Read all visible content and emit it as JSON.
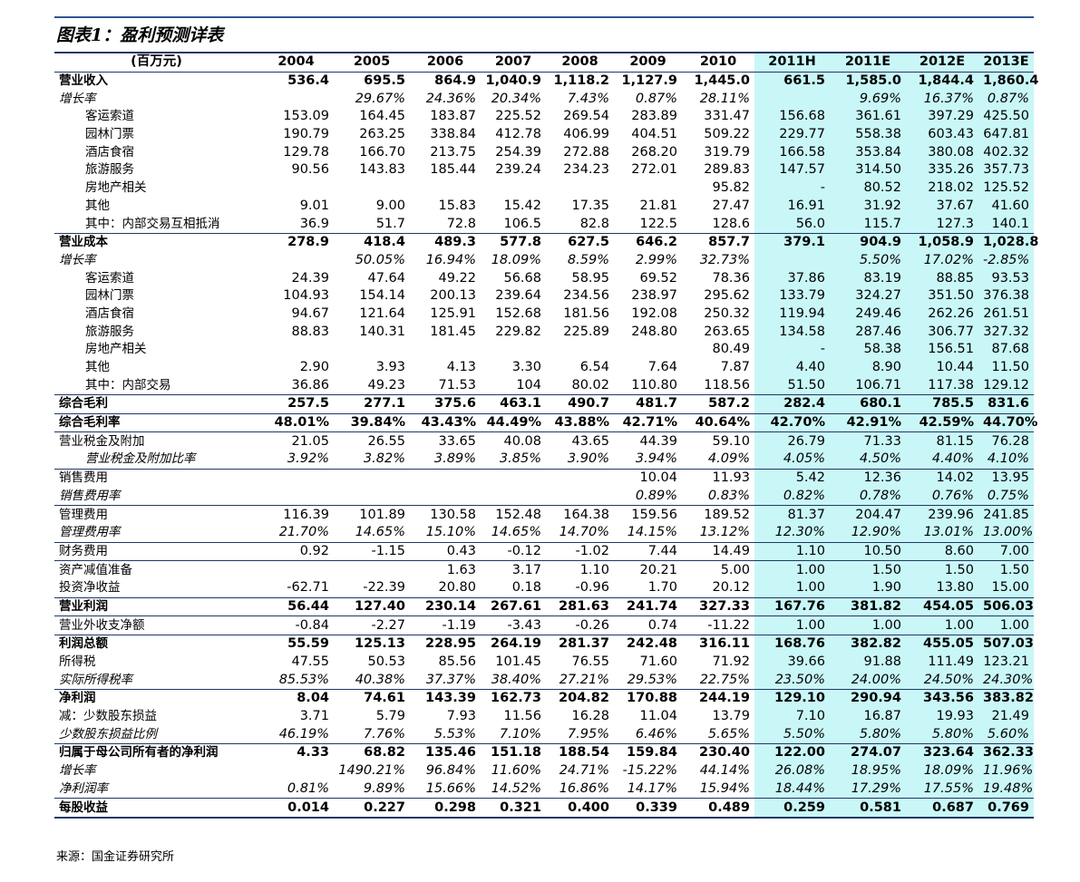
{
  "title": "图表1：盈利预测详表",
  "source": "来源：国金证券研究所",
  "table": {
    "header": [
      "(百万元)",
      "2004",
      "2005",
      "2006",
      "2007",
      "2008",
      "2009",
      "2010",
      "2011H",
      "2011E",
      "2012E",
      "2013E"
    ],
    "rows": [
      {
        "label": "营业收入",
        "values": [
          "536.4",
          "695.5",
          "864.9",
          "1,040.9",
          "1,118.2",
          "1,127.9",
          "1,445.0",
          "661.5",
          "1,585.0",
          "1,844.4",
          "1,860.4"
        ]
      },
      {
        "label": "增长率",
        "values": [
          null,
          "29.67%",
          "24.36%",
          "20.34%",
          "7.43%",
          "0.87%",
          "28.11%",
          null,
          "9.69%",
          "16.37%",
          "0.87%"
        ]
      },
      {
        "label": "客运索道",
        "values": [
          "153.09",
          "164.45",
          "183.87",
          "225.52",
          "269.54",
          "283.89",
          "331.47",
          "156.68",
          "361.61",
          "397.29",
          "425.50"
        ]
      },
      {
        "label": "园林门票",
        "values": [
          "190.79",
          "263.25",
          "338.84",
          "412.78",
          "406.99",
          "404.51",
          "509.22",
          "229.77",
          "558.38",
          "603.43",
          "647.81"
        ]
      },
      {
        "label": "酒店食宿",
        "values": [
          "129.78",
          "166.70",
          "213.75",
          "254.39",
          "272.88",
          "268.20",
          "319.79",
          "166.58",
          "353.84",
          "380.08",
          "402.32"
        ]
      },
      {
        "label": "旅游服务",
        "values": [
          "90.56",
          "143.83",
          "185.44",
          "239.24",
          "234.23",
          "272.01",
          "289.83",
          "147.57",
          "314.50",
          "335.26",
          "357.73"
        ]
      },
      {
        "label": "房地产相关",
        "values": [
          null,
          null,
          null,
          null,
          null,
          null,
          "95.82",
          "-",
          "80.52",
          "218.02",
          "125.52"
        ]
      },
      {
        "label": "其他",
        "values": [
          "9.01",
          "9.00",
          "15.83",
          "15.42",
          "17.35",
          "21.81",
          "27.47",
          "16.91",
          "31.92",
          "37.67",
          "41.60"
        ]
      },
      {
        "label": "其中：内部交易互相抵消",
        "values": [
          "36.9",
          "51.7",
          "72.8",
          "106.5",
          "82.8",
          "122.5",
          "128.6",
          "56.0",
          "115.7",
          "127.3",
          "140.1"
        ]
      },
      {
        "label": "营业成本",
        "values": [
          "278.9",
          "418.4",
          "489.3",
          "577.8",
          "627.5",
          "646.2",
          "857.7",
          "379.1",
          "904.9",
          "1,058.9",
          "1,028.8"
        ]
      },
      {
        "label": "增长率",
        "values": [
          null,
          "50.05%",
          "16.94%",
          "18.09%",
          "8.59%",
          "2.99%",
          "32.73%",
          null,
          "5.50%",
          "17.02%",
          "-2.85%"
        ]
      },
      {
        "label": "客运索道",
        "values": [
          "24.39",
          "47.64",
          "49.22",
          "56.68",
          "58.95",
          "69.52",
          "78.36",
          "37.86",
          "83.19",
          "88.85",
          "93.53"
        ]
      },
      {
        "label": "园林门票",
        "values": [
          "104.93",
          "154.14",
          "200.13",
          "239.64",
          "234.56",
          "238.97",
          "295.62",
          "133.79",
          "324.27",
          "351.50",
          "376.38"
        ]
      },
      {
        "label": "酒店食宿",
        "values": [
          "94.67",
          "121.64",
          "125.91",
          "152.68",
          "181.56",
          "192.08",
          "250.32",
          "119.94",
          "249.46",
          "262.26",
          "261.51"
        ]
      },
      {
        "label": "旅游服务",
        "values": [
          "88.83",
          "140.31",
          "181.45",
          "229.82",
          "225.89",
          "248.80",
          "263.65",
          "134.58",
          "287.46",
          "306.77",
          "327.32"
        ]
      },
      {
        "label": "房地产相关",
        "values": [
          null,
          null,
          null,
          null,
          null,
          null,
          "80.49",
          "-",
          "58.38",
          "156.51",
          "87.68"
        ]
      },
      {
        "label": "其他",
        "values": [
          "2.90",
          "3.93",
          "4.13",
          "3.30",
          "6.54",
          "7.64",
          "7.87",
          "4.40",
          "8.90",
          "10.44",
          "11.50"
        ]
      },
      {
        "label": "其中：内部交易",
        "values": [
          "36.86",
          "49.23",
          "71.53",
          "104",
          "80.02",
          "110.80",
          "118.56",
          "51.50",
          "106.71",
          "117.38",
          "129.12"
        ]
      },
      {
        "label": "综合毛利",
        "values": [
          "257.5",
          "277.1",
          "375.6",
          "463.1",
          "490.7",
          "481.7",
          "587.2",
          "282.4",
          "680.1",
          "785.5",
          "831.6"
        ]
      },
      {
        "label": "综合毛利率",
        "values": [
          "48.01%",
          "39.84%",
          "43.43%",
          "44.49%",
          "43.88%",
          "42.71%",
          "40.64%",
          "42.70%",
          "42.91%",
          "42.59%",
          "44.70%"
        ]
      },
      {
        "label": "营业税金及附加",
        "values": [
          "21.05",
          "26.55",
          "33.65",
          "40.08",
          "43.65",
          "44.39",
          "59.10",
          "26.79",
          "71.33",
          "81.15",
          "76.28"
        ]
      },
      {
        "label": "营业税金及附加比率",
        "values": [
          "3.92%",
          "3.82%",
          "3.89%",
          "3.85%",
          "3.90%",
          "3.94%",
          "4.09%",
          "4.05%",
          "4.50%",
          "4.40%",
          "4.10%"
        ]
      },
      {
        "label": "销售费用",
        "values": [
          null,
          null,
          null,
          null,
          null,
          "10.04",
          "11.93",
          "5.42",
          "12.36",
          "14.02",
          "13.95"
        ]
      },
      {
        "label": "销售费用率",
        "values": [
          null,
          null,
          null,
          null,
          null,
          "0.89%",
          "0.83%",
          "0.82%",
          "0.78%",
          "0.76%",
          "0.75%"
        ]
      },
      {
        "label": "管理费用",
        "values": [
          "116.39",
          "101.89",
          "130.58",
          "152.48",
          "164.38",
          "159.56",
          "189.52",
          "81.37",
          "204.47",
          "239.96",
          "241.85"
        ]
      },
      {
        "label": "管理费用率",
        "values": [
          "21.70%",
          "14.65%",
          "15.10%",
          "14.65%",
          "14.70%",
          "14.15%",
          "13.12%",
          "12.30%",
          "12.90%",
          "13.01%",
          "13.00%"
        ]
      },
      {
        "label": "财务费用",
        "values": [
          "0.92",
          "-1.15",
          "0.43",
          "-0.12",
          "-1.02",
          "7.44",
          "14.49",
          "1.10",
          "10.50",
          "8.60",
          "7.00"
        ]
      },
      {
        "label": "资产减值准备",
        "values": [
          null,
          null,
          "1.63",
          "3.17",
          "1.10",
          "20.21",
          "5.00",
          "1.00",
          "1.50",
          "1.50",
          "1.50"
        ]
      },
      {
        "label": "投资净收益",
        "values": [
          "-62.71",
          "-22.39",
          "20.80",
          "0.18",
          "-0.96",
          "1.70",
          "20.12",
          "1.00",
          "1.90",
          "13.80",
          "15.00"
        ]
      },
      {
        "label": "营业利润",
        "values": [
          "56.44",
          "127.40",
          "230.14",
          "267.61",
          "281.63",
          "241.74",
          "327.33",
          "167.76",
          "381.82",
          "454.05",
          "506.03"
        ]
      },
      {
        "label": "营业外收支净额",
        "values": [
          "-0.84",
          "-2.27",
          "-1.19",
          "-3.43",
          "-0.26",
          "0.74",
          "-11.22",
          "1.00",
          "1.00",
          "1.00",
          "1.00"
        ]
      },
      {
        "label": "利润总额",
        "values": [
          "55.59",
          "125.13",
          "228.95",
          "264.19",
          "281.37",
          "242.48",
          "316.11",
          "168.76",
          "382.82",
          "455.05",
          "507.03"
        ]
      },
      {
        "label": "所得税",
        "values": [
          "47.55",
          "50.53",
          "85.56",
          "101.45",
          "76.55",
          "71.60",
          "71.92",
          "39.66",
          "91.88",
          "111.49",
          "123.21"
        ]
      },
      {
        "label": "实际所得税率",
        "values": [
          "85.53%",
          "40.38%",
          "37.37%",
          "38.40%",
          "27.21%",
          "29.53%",
          "22.75%",
          "23.50%",
          "24.00%",
          "24.50%",
          "24.30%"
        ]
      },
      {
        "label": "净利润",
        "values": [
          "8.04",
          "74.61",
          "143.39",
          "162.73",
          "204.82",
          "170.88",
          "244.19",
          "129.10",
          "290.94",
          "343.56",
          "383.82"
        ]
      },
      {
        "label": "减：少数股东损益",
        "values": [
          "3.71",
          "5.79",
          "7.93",
          "11.56",
          "16.28",
          "11.04",
          "13.79",
          "7.10",
          "16.87",
          "19.93",
          "21.49"
        ]
      },
      {
        "label": "少数股东损益比例",
        "values": [
          "46.19%",
          "7.76%",
          "5.53%",
          "7.10%",
          "7.95%",
          "6.46%",
          "5.65%",
          "5.50%",
          "5.80%",
          "5.80%",
          "5.60%"
        ]
      },
      {
        "label": "归属于母公司所有者的净利润",
        "values": [
          "4.33",
          "68.82",
          "135.46",
          "151.18",
          "188.54",
          "159.84",
          "230.40",
          "122.00",
          "274.07",
          "323.64",
          "362.33"
        ]
      },
      {
        "label": "增长率",
        "values": [
          null,
          "1490.21%",
          "96.84%",
          "11.60%",
          "24.71%",
          "-15.22%",
          "44.14%",
          "26.08%",
          "18.95%",
          "18.09%",
          "11.96%"
        ]
      },
      {
        "label": "净利润率",
        "values": [
          "0.81%",
          "9.89%",
          "15.66%",
          "14.52%",
          "16.86%",
          "14.17%",
          "15.94%",
          "18.44%",
          "17.29%",
          "17.55%",
          "19.48%"
        ]
      },
      {
        "label": "每股收益",
        "values": [
          "0.014",
          "0.227",
          "0.298",
          "0.321",
          "0.400",
          "0.339",
          "0.489",
          "0.259",
          "0.581",
          "0.687",
          "0.769"
        ]
      }
    ]
  }
}
